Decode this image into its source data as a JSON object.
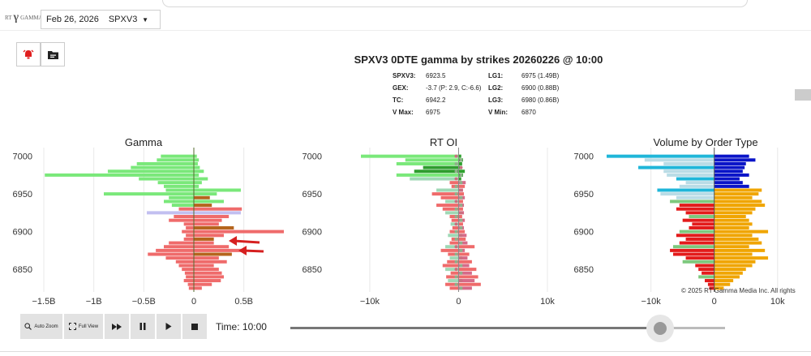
{
  "header": {
    "logo_rt": "RT",
    "logo_glyph": "γ",
    "logo_text": "GAMMA",
    "date": "Feb 26, 2026",
    "symbol": "SPXV3"
  },
  "toolbar": {
    "alert_icon": "alarm-bell-icon",
    "folder_icon": "folder-icon"
  },
  "summary": {
    "title": "SPXV3 0DTE gamma by strikes 20260226 @ 10:00",
    "left": [
      {
        "label": "SPXV3:",
        "value": "6923.5"
      },
      {
        "label": "GEX:",
        "value": "-3.7 (P: 2.9, C:-6.6)"
      },
      {
        "label": "TC:",
        "value": "6942.2"
      },
      {
        "label": "V Max:",
        "value": "6975"
      }
    ],
    "right": [
      {
        "label": "LG1:",
        "value": "6975 (1.49B)"
      },
      {
        "label": "LG2:",
        "value": "6900 (0.88B)"
      },
      {
        "label": "LG3:",
        "value": "6980 (0.86B)"
      },
      {
        "label": "V Min:",
        "value": "6870"
      }
    ]
  },
  "colors": {
    "green": "#7ae87a",
    "dark_green": "#2e9d2e",
    "red": "#ef6b6b",
    "brown": "#b5651d",
    "lavender": "#c2bff0",
    "cyan": "#1fb6d9",
    "light_blue": "#b9dce6",
    "navy": "#0a14c8",
    "orange": "#f0a500",
    "bright_red": "#e31b1b"
  },
  "chart_data": [
    {
      "type": "bar",
      "orientation": "horizontal",
      "title": "Gamma",
      "y_ticks": [
        "7000",
        "6950",
        "6900",
        "6850"
      ],
      "x_ticks": [
        "−1.5B",
        "−1B",
        "−0.5B",
        "0",
        "0.5B"
      ],
      "xlim": [
        -1.5,
        0.9
      ],
      "ylim": [
        6820,
        7005
      ],
      "strike_step": 5,
      "strikes": [
        7000,
        6995,
        6990,
        6985,
        6980,
        6975,
        6970,
        6965,
        6960,
        6955,
        6950,
        6945,
        6940,
        6935,
        6930,
        6925,
        6920,
        6915,
        6910,
        6905,
        6900,
        6895,
        6890,
        6885,
        6880,
        6875,
        6870,
        6865,
        6860,
        6855,
        6850,
        6845,
        6840,
        6835,
        6830,
        6825
      ],
      "series": [
        {
          "values": [
            -0.33,
            -0.37,
            -0.57,
            -0.63,
            -0.86,
            -1.49,
            -0.55,
            -0.36,
            -0.3,
            -0.28,
            -0.9,
            -0.25,
            -0.3,
            -0.22,
            -0.15,
            -0.47,
            -0.2,
            -0.25,
            -0.1,
            -0.08,
            -0.12,
            -0.08,
            -0.1,
            -0.25,
            -0.3,
            -0.38,
            -0.46,
            -0.28,
            -0.18,
            -0.15,
            -0.12,
            -0.09,
            -0.08,
            -0.1,
            -0.06,
            -0.05
          ]
        },
        {
          "values": [
            0.03,
            0.05,
            0.04,
            0.06,
            0.1,
            0.05,
            0.14,
            0.08,
            0.05,
            0.47,
            0.23,
            0.16,
            0.3,
            0.18,
            0.48,
            0.47,
            0.35,
            0.28,
            0.25,
            0.4,
            0.9,
            0.3,
            0.2,
            0.2,
            0.35,
            0.5,
            0.38,
            0.25,
            0.33,
            0.2,
            0.25,
            0.28,
            0.3,
            0.27,
            0.18,
            0.08
          ]
        }
      ]
    },
    {
      "type": "bar",
      "orientation": "horizontal",
      "title": "RT OI",
      "y_ticks": [
        "7000",
        "6950",
        "6900",
        "6850"
      ],
      "x_ticks": [
        "−10k",
        "0",
        "10k"
      ],
      "xlim": [
        -11000,
        10000
      ],
      "ylim": [
        6820,
        7005
      ],
      "strikes": [
        7000,
        6995,
        6990,
        6985,
        6980,
        6975,
        6970,
        6965,
        6960,
        6955,
        6950,
        6945,
        6940,
        6935,
        6930,
        6925,
        6920,
        6915,
        6910,
        6905,
        6900,
        6895,
        6890,
        6885,
        6880,
        6875,
        6870,
        6865,
        6860,
        6855,
        6850,
        6845,
        6840,
        6835,
        6830,
        6825
      ],
      "series": [
        {
          "values": [
            -11000,
            -6000,
            -7000,
            -4000,
            -5000,
            -7000,
            -5500,
            -1000,
            -800,
            -2500,
            -3000,
            -2000,
            -1500,
            -2500,
            -1800,
            -1500,
            -1000,
            -800,
            -900,
            -700,
            -1000,
            -1200,
            -800,
            -1000,
            -1500,
            -2000,
            -1200,
            -1000,
            -1300,
            -1800,
            -1500,
            -900,
            -1400,
            -1200,
            -1500,
            -1000
          ]
        },
        {
          "values": [
            300,
            500,
            400,
            400,
            700,
            500,
            300,
            800,
            700,
            500,
            600,
            700,
            500,
            600,
            500,
            600,
            400,
            700,
            500,
            600,
            700,
            900,
            800,
            1000,
            1800,
            700,
            1200,
            1000,
            1500,
            1200,
            2000,
            1500,
            2200,
            1800,
            2500,
            1500
          ]
        }
      ]
    },
    {
      "type": "bar",
      "orientation": "horizontal",
      "title": "Volume by Order Type",
      "y_ticks": [
        "7000",
        "6950",
        "6900",
        "6850"
      ],
      "x_ticks": [
        "−10k",
        "0",
        "10k"
      ],
      "xlim": [
        -17000,
        14000
      ],
      "ylim": [
        6820,
        7005
      ],
      "strikes": [
        7000,
        6995,
        6990,
        6985,
        6980,
        6975,
        6970,
        6965,
        6960,
        6955,
        6950,
        6945,
        6940,
        6935,
        6930,
        6925,
        6920,
        6915,
        6910,
        6905,
        6900,
        6895,
        6890,
        6885,
        6880,
        6875,
        6870,
        6865,
        6860,
        6855,
        6850,
        6845,
        6840,
        6835,
        6830,
        6825
      ],
      "series": [
        {
          "values": [
            -17000,
            -11000,
            -8000,
            -12000,
            -8000,
            -7500,
            -6000,
            -4500,
            -5500,
            -9000,
            -8500,
            -6000,
            -7000,
            -5500,
            -6000,
            -4500,
            -4000,
            -5000,
            -3500,
            -4000,
            -5500,
            -6000,
            -4500,
            -5500,
            -6500,
            -7000,
            -6500,
            -4500,
            -5000,
            -3000,
            -2500,
            -2000,
            -2500,
            -1500,
            -1000,
            -800
          ]
        },
        {
          "values": [
            5500,
            6500,
            5000,
            4800,
            4500,
            5500,
            4000,
            4500,
            5500,
            7500,
            7000,
            6000,
            7500,
            8000,
            6500,
            6000,
            5000,
            5500,
            6000,
            5500,
            8500,
            6000,
            7000,
            7500,
            5500,
            8000,
            6000,
            8500,
            6500,
            6000,
            5000,
            4500,
            4000,
            3000,
            2500,
            1500
          ]
        }
      ]
    }
  ],
  "copyright": "© 2025 RT Gamma Media Inc. All rights",
  "controls": {
    "auto_zoom": "Auto Zoom",
    "full_view": "Full View",
    "fast_forward_icon": "fast-forward-icon",
    "pause_icon": "pause-icon",
    "play_icon": "play-icon",
    "stop_icon": "stop-icon",
    "time_label": "Time: 10:00",
    "progress": 0.85
  }
}
